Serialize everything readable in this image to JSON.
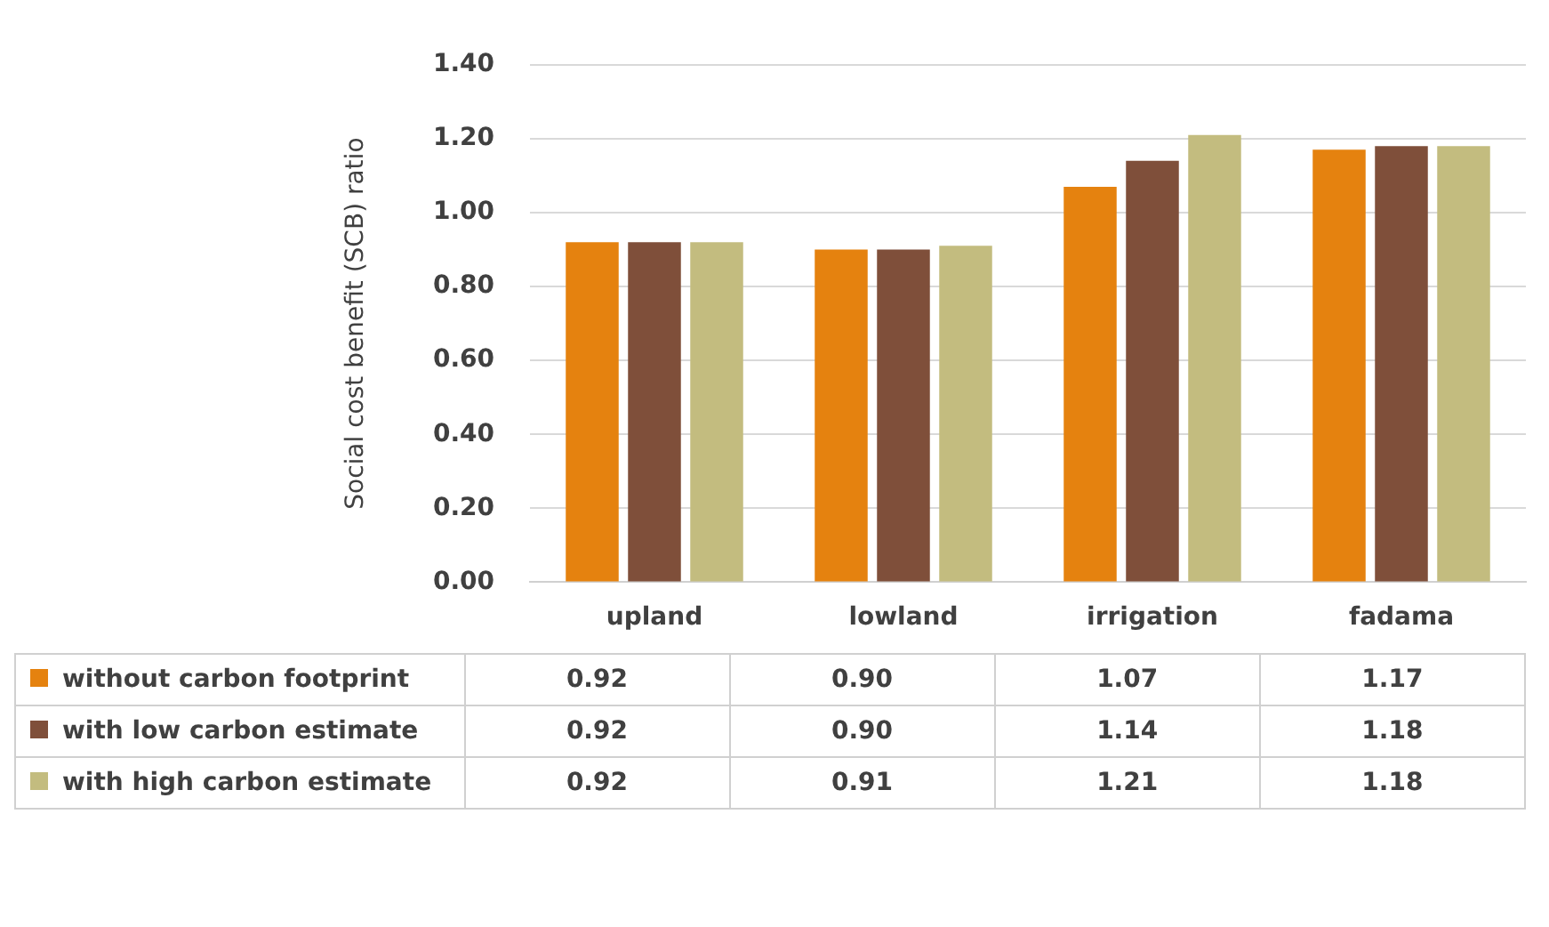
{
  "chart_data": {
    "type": "bar",
    "ylabel": "Social cost benefit (SCB) ratio",
    "categories": [
      "upland",
      "lowland",
      "irrigation",
      "fadama"
    ],
    "series": [
      {
        "name": "without carbon footprint",
        "color": "#e5820f",
        "values": [
          0.92,
          0.9,
          1.07,
          1.17
        ],
        "value_labels": [
          "0.92",
          "0.90",
          "1.07",
          "1.17"
        ]
      },
      {
        "name": "with low carbon estimate",
        "color": "#7f4f3a",
        "values": [
          0.92,
          0.9,
          1.14,
          1.18
        ],
        "value_labels": [
          "0.92",
          "0.90",
          "1.14",
          "1.18"
        ]
      },
      {
        "name": "with high carbon estimate",
        "color": "#c3bc7f",
        "values": [
          0.92,
          0.91,
          1.21,
          1.18
        ],
        "value_labels": [
          "0.92",
          "0.91",
          "1.21",
          "1.18"
        ]
      }
    ],
    "ylim": [
      0,
      1.4
    ],
    "yticks": [
      {
        "value": 0,
        "label": "0.00"
      },
      {
        "value": 0.2,
        "label": "0.20"
      },
      {
        "value": 0.4,
        "label": "0.40"
      },
      {
        "value": 0.6,
        "label": "0.60"
      },
      {
        "value": 0.8,
        "label": "0.80"
      },
      {
        "value": 1,
        "label": "1.00"
      },
      {
        "value": 1.2,
        "label": "1.20"
      },
      {
        "value": 1.4,
        "label": "1.40"
      }
    ],
    "grid": "y",
    "legend": "bottom"
  }
}
